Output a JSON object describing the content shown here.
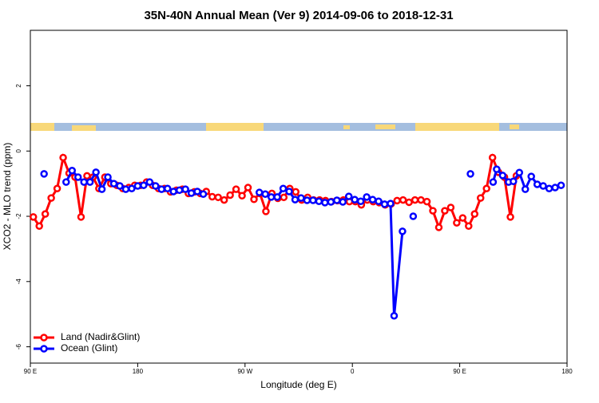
{
  "chart_data": {
    "type": "line",
    "title": "35N-40N Annual Mean (Ver 9)   2014-09-06 to 2018-12-31",
    "x_label": "Longitude (deg E)",
    "y_label": "XCO2 - MLO trend (ppm)",
    "xlim": [
      90,
      540
    ],
    "xticks": [
      {
        "value": 90,
        "label": "90 E"
      },
      {
        "value": 180,
        "label": "180"
      },
      {
        "value": 270,
        "label": "90 W"
      },
      {
        "value": 360,
        "label": "0"
      },
      {
        "value": 450,
        "label": "90 E"
      },
      {
        "value": 540,
        "label": "180"
      }
    ],
    "ylim": [
      -6.5,
      3.7
    ],
    "yticks": [
      -6,
      -4,
      -2,
      0,
      2
    ],
    "legend": "bottom-left",
    "series": [
      {
        "name": "Land (Nadir&Glint)",
        "color": "#ff0000",
        "x": [
          92.5,
          97.5,
          102.5,
          107.5,
          112.5,
          117.5,
          122.5,
          127.5,
          132.5,
          137.5,
          142.5,
          147.5,
          152.5,
          157.5,
          162.5,
          167.5,
          172.5,
          177.5,
          182.5,
          187.5,
          192.5,
          197.5,
          202.5,
          207.5,
          212.5,
          217.5,
          222.5,
          227.5,
          232.5,
          237.5,
          242.5,
          247.5,
          252.5,
          257.5,
          262.5,
          267.5,
          272.5,
          277.5,
          282.5,
          287.5,
          292.5,
          297.5,
          302.5,
          307.5,
          312.5,
          317.5,
          322.5,
          327.5,
          332.5,
          337.5,
          342.5,
          347.5,
          352.5,
          357.5,
          362.5,
          367.5,
          372.5,
          377.5,
          382.5,
          387.5,
          392.5,
          397.5,
          402.5,
          407.5,
          412.5,
          417.5,
          422.5,
          427.5,
          432.5,
          437.5,
          442.5,
          447.5,
          452.5,
          457.5,
          462.5,
          467.5,
          472.5,
          477.5,
          482.5,
          487.5,
          492.5,
          497.5
        ],
        "values": [
          -2.02,
          -2.3,
          -1.93,
          -1.44,
          -1.15,
          -0.2,
          -0.68,
          -0.8,
          -2.02,
          -0.76,
          -0.8,
          -1.15,
          -0.8,
          -1.0,
          -1.05,
          -1.15,
          -1.12,
          -1.05,
          -1.05,
          -0.95,
          -1.05,
          -1.15,
          -1.15,
          -1.25,
          -1.2,
          -1.17,
          -1.3,
          -1.25,
          -1.3,
          -1.24,
          -1.4,
          -1.42,
          -1.5,
          -1.35,
          -1.17,
          -1.37,
          -1.12,
          -1.48,
          -1.3,
          -1.85,
          -1.3,
          -1.45,
          -1.42,
          -1.15,
          -1.25,
          -1.5,
          -1.42,
          -1.5,
          -1.5,
          -1.52,
          -1.55,
          -1.52,
          -1.5,
          -1.55,
          -1.55,
          -1.65,
          -1.5,
          -1.55,
          -1.58,
          -1.65,
          -1.62,
          -1.52,
          -1.5,
          -1.57,
          -1.5,
          -1.5,
          -1.55,
          -1.83,
          -2.34,
          -1.83,
          -1.73,
          -2.2,
          -2.05,
          -2.3,
          -1.93,
          -1.44,
          -1.15,
          -0.2,
          -0.65,
          -0.8,
          -2.02,
          -0.76
        ]
      },
      {
        "name": "Ocean (Glint)",
        "color": "#0000ff",
        "x": [
          101.5,
          null,
          120,
          125,
          130,
          135,
          140,
          145,
          150,
          155,
          160,
          165,
          170,
          175,
          180,
          185,
          190,
          195,
          200,
          205,
          210,
          215,
          220,
          225,
          230,
          235,
          null,
          282,
          287,
          292,
          297,
          302,
          307,
          312,
          317,
          322,
          327,
          332,
          337,
          342,
          347,
          352,
          357,
          362,
          367,
          372,
          377,
          382,
          387,
          392,
          395,
          402,
          null,
          411,
          null,
          459,
          null,
          478,
          481,
          486,
          491,
          495,
          500,
          505,
          510,
          515,
          520,
          525,
          530,
          535
        ],
        "values": [
          -0.7,
          null,
          -0.95,
          -0.6,
          -0.8,
          -0.95,
          -0.95,
          -0.65,
          -1.17,
          -0.8,
          -1.0,
          -1.07,
          -1.17,
          -1.15,
          -1.07,
          -1.05,
          -0.95,
          -1.07,
          -1.17,
          -1.15,
          -1.24,
          -1.2,
          -1.17,
          -1.29,
          -1.24,
          -1.32,
          null,
          -1.27,
          -1.32,
          -1.41,
          -1.41,
          -1.15,
          -1.24,
          -1.49,
          -1.44,
          -1.51,
          -1.51,
          -1.54,
          -1.58,
          -1.56,
          -1.51,
          -1.56,
          -1.39,
          -1.49,
          -1.54,
          -1.41,
          -1.49,
          -1.54,
          -1.63,
          -1.61,
          -5.05,
          -2.46,
          null,
          -2.0,
          null,
          -0.7,
          null,
          -0.95,
          -0.56,
          -0.75,
          -0.95,
          -0.93,
          -0.66,
          -1.17,
          -0.78,
          -1.02,
          -1.07,
          -1.15,
          -1.12,
          -1.05
        ]
      }
    ]
  }
}
